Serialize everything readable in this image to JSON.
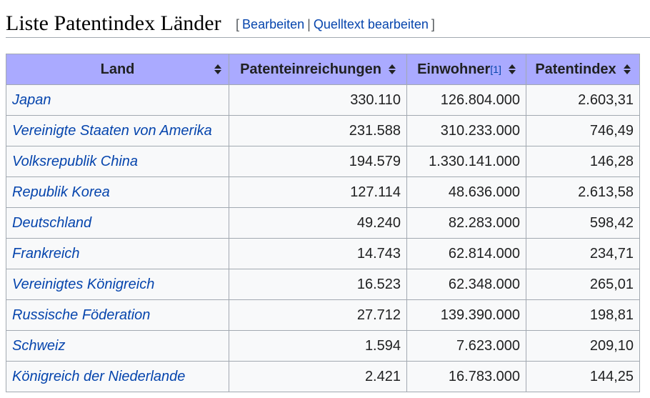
{
  "section": {
    "title": "Liste Patentindex Länder",
    "edit_label": "Bearbeiten",
    "edit_source_label": "Quelltext bearbeiten",
    "bracket_open": "[",
    "bracket_close": "]",
    "separator": "|"
  },
  "table": {
    "headers": {
      "land": "Land",
      "patents": "Patenteinreichungen",
      "population": "Einwohner",
      "population_ref": "[1]",
      "index": "Patentindex"
    },
    "rows": [
      {
        "land": "Japan",
        "patents": "330.110",
        "population": "126.804.000",
        "index": "2.603,31"
      },
      {
        "land": "Vereinigte Staaten von Amerika",
        "patents": "231.588",
        "population": "310.233.000",
        "index": "746,49"
      },
      {
        "land": "Volksrepublik China",
        "patents": "194.579",
        "population": "1.330.141.000",
        "index": "146,28"
      },
      {
        "land": "Republik Korea",
        "patents": "127.114",
        "population": "48.636.000",
        "index": "2.613,58"
      },
      {
        "land": "Deutschland",
        "patents": "49.240",
        "population": "82.283.000",
        "index": "598,42"
      },
      {
        "land": "Frankreich",
        "patents": "14.743",
        "population": "62.814.000",
        "index": "234,71"
      },
      {
        "land": "Vereinigtes Königreich",
        "patents": "16.523",
        "population": "62.348.000",
        "index": "265,01"
      },
      {
        "land": "Russische Föderation",
        "patents": "27.712",
        "population": "139.390.000",
        "index": "198,81"
      },
      {
        "land": "Schweiz",
        "patents": "1.594",
        "population": "7.623.000",
        "index": "209,10"
      },
      {
        "land": "Königreich der Niederlande",
        "patents": "2.421",
        "population": "16.783.000",
        "index": "144,25"
      }
    ]
  },
  "colors": {
    "header_bg": "#aaaaff",
    "link": "#0645ad",
    "border": "#a2a9b1",
    "cell_bg": "#f8f9fa"
  },
  "icons": {
    "sort": "sort-icon"
  }
}
